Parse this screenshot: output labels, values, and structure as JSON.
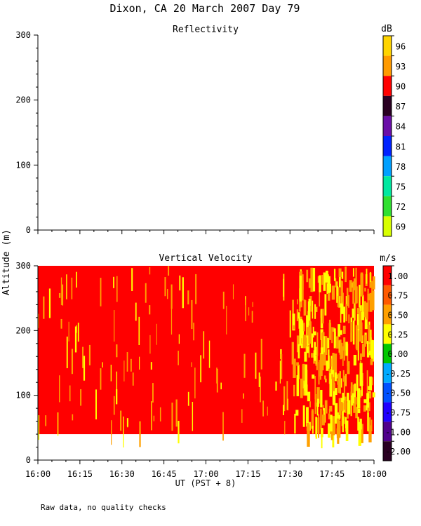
{
  "title": "Dixon, CA 20 March 2007  Day  79",
  "footnote": "Raw data, no quality checks",
  "colors": {
    "velocity_background": "#ff0000",
    "velocity_streak_primary": "#ffa000",
    "velocity_streak_secondary": "#ffff00"
  },
  "chart_data": [
    {
      "type": "heatmap",
      "title": "Reflectivity",
      "ylabel": "Altitude (m)",
      "ylim": [
        0,
        300
      ],
      "yticks": [
        "0",
        "100",
        "200",
        "300"
      ],
      "xlim": [
        "16:00",
        "18:00"
      ],
      "data": [],
      "colorbar": {
        "unit": "dB",
        "labels": [
          "96",
          "93",
          "90",
          "87",
          "84",
          "81",
          "78",
          "75",
          "72",
          "69"
        ],
        "colors": [
          "#ffd400",
          "#ff9a00",
          "#ff0000",
          "#2a0022",
          "#6a0ea8",
          "#0022ff",
          "#00a0ff",
          "#00e8a0",
          "#30e030",
          "#d8ff00"
        ]
      }
    },
    {
      "type": "heatmap",
      "title": "Vertical Velocity",
      "ylabel": "Altitude (m)",
      "xlabel": "UT  (PST + 8)",
      "ylim": [
        0,
        300
      ],
      "yticks": [
        "0",
        "100",
        "200",
        "300"
      ],
      "xticks": [
        "16:00",
        "16:15",
        "16:30",
        "16:45",
        "17:00",
        "17:15",
        "17:30",
        "17:45",
        "18:00"
      ],
      "data_altitude_range": [
        40,
        300
      ],
      "dominant_value": "1.00",
      "high_variability_after": "17:30",
      "colorbar": {
        "unit": "m/s",
        "labels": [
          "1.00",
          "0.75",
          "0.50",
          "0.25",
          "0.00",
          "-0.25",
          "-0.50",
          "-0.75",
          "-1.00",
          "-2.00"
        ],
        "colors": [
          "#ff0000",
          "#ff5a00",
          "#ffa000",
          "#ffff00",
          "#00c800",
          "#00aaff",
          "#0050ff",
          "#2000ff",
          "#50008c",
          "#2a0022"
        ]
      }
    }
  ]
}
